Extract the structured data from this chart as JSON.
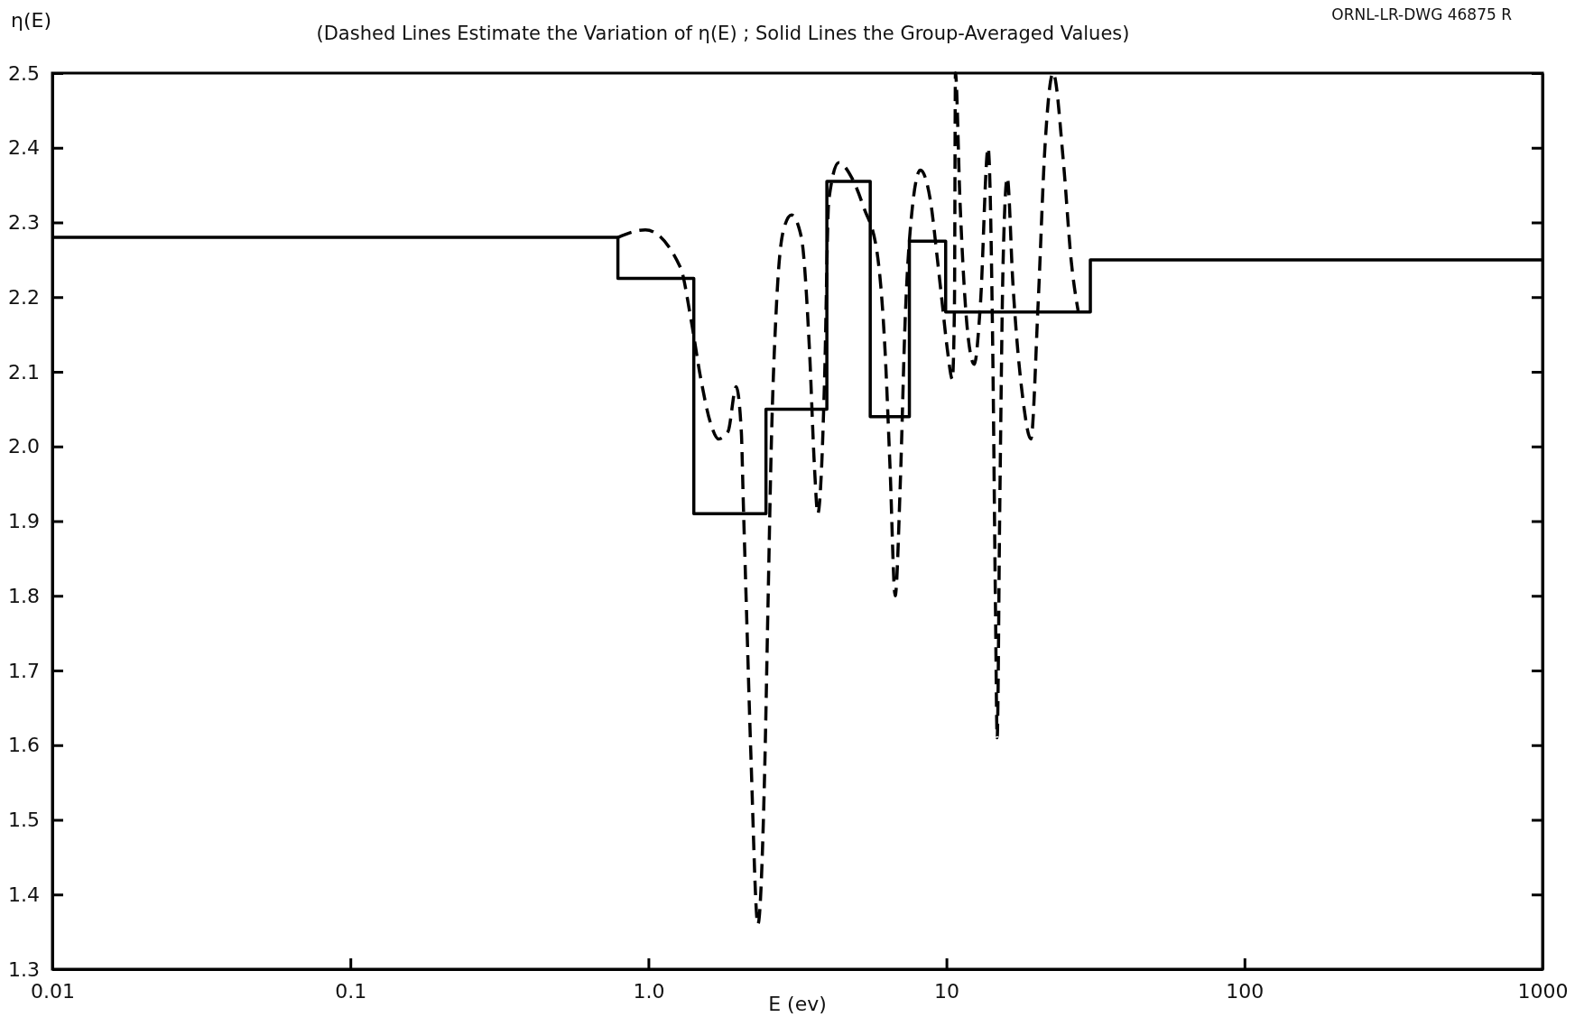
{
  "chart_data": {
    "type": "line",
    "title": "(Dashed Lines Estimate the Variation of η(E) ; Solid Lines the Group-Averaged Values)",
    "xlabel": "E (ev)",
    "ylabel": "η(E)",
    "annotations": [
      "ORNL-LR-DWG 46875 R"
    ],
    "log": "x",
    "xlim": [
      0.01,
      1000
    ],
    "xticks": [
      0.01,
      0.1,
      {
        "value": 1,
        "label": "1.0"
      },
      10,
      100,
      1000
    ],
    "ylim": [
      1.3,
      2.5
    ],
    "yticks": [
      1.3,
      1.4,
      1.5,
      1.6,
      1.7,
      1.8,
      1.9,
      {
        "value": 2,
        "label": "2.0"
      },
      2.1,
      2.2,
      2.3,
      2.4,
      2.5
    ],
    "grid": false,
    "series": [
      {
        "type": "step",
        "color": "#000000",
        "line_style": "solid",
        "x": [
          0.01,
          0.79,
          1.42,
          2.48,
          3.97,
          5.55,
          7.51,
          9.94,
          30.4,
          1000
        ],
        "values": [
          2.28,
          2.225,
          1.91,
          2.05,
          2.355,
          2.04,
          2.275,
          2.18,
          2.25,
          2.25
        ]
      },
      {
        "type": "line",
        "color": "#000000",
        "line_style": "dashed",
        "x": [
          0.79,
          0.977,
          1.28,
          1.39,
          1.5,
          1.62,
          1.72,
          1.85,
          1.97,
          2.05,
          2.08,
          2.13,
          2.21,
          2.33,
          2.45,
          2.52,
          2.58,
          2.69,
          2.84,
          3.02,
          3.26,
          3.47,
          3.61,
          3.7,
          3.81,
          3.9,
          4.03,
          4.35,
          4.81,
          5.28,
          5.85,
          6.22,
          6.47,
          6.73,
          7.0,
          7.27,
          7.56,
          8.17,
          8.83,
          9.33,
          9.69,
          10.07,
          10.47,
          10.64,
          10.72,
          11.1,
          11.8,
          12.4,
          13.0,
          13.8,
          14.3,
          14.6,
          14.8,
          15.1,
          15.5,
          16.0,
          16.7,
          18.1,
          19.2,
          20.3,
          21.4,
          22.8,
          24.7,
          26.2,
          27.7
        ],
        "values": [
          2.28,
          2.29,
          2.24,
          2.17,
          2.09,
          2.03,
          2.01,
          2.02,
          2.08,
          2.02,
          1.93,
          1.79,
          1.58,
          1.36,
          1.55,
          1.79,
          1.99,
          2.19,
          2.29,
          2.31,
          2.28,
          2.13,
          1.97,
          1.91,
          1.97,
          2.09,
          2.33,
          2.38,
          2.36,
          2.32,
          2.26,
          2.13,
          1.97,
          1.8,
          1.95,
          2.17,
          2.29,
          2.37,
          2.33,
          2.25,
          2.19,
          2.13,
          2.09,
          2.19,
          2.5,
          2.33,
          2.15,
          2.11,
          2.19,
          2.4,
          2.13,
          1.79,
          1.61,
          1.92,
          2.25,
          2.36,
          2.22,
          2.06,
          2.01,
          2.19,
          2.4,
          2.5,
          2.38,
          2.25,
          2.18
        ]
      }
    ]
  }
}
